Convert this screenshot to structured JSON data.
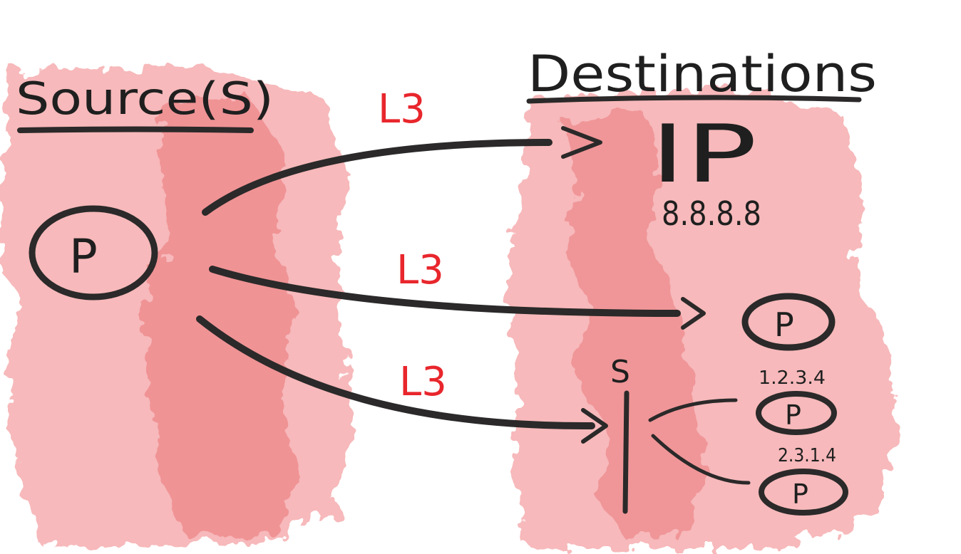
{
  "labels": {
    "sources_heading": "Source(S)",
    "destinations_heading": "Destinations",
    "source_pod": "P",
    "ip_label": "IP",
    "ip_address": "8.8.8.8",
    "pod_label": "P",
    "service_label": "S",
    "pod_address_1": "1.2.3.4",
    "pod_address_2": "2.3.1.4",
    "layer_1": "L3",
    "layer_2": "L3",
    "layer_3": "L3"
  },
  "colors": {
    "wash": "#f4a3a5",
    "wash_dark": "#ee8689",
    "ink": "#2b2929",
    "accent": "#e8262c"
  }
}
